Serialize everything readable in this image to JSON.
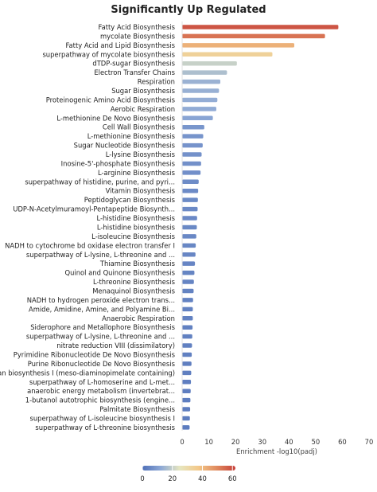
{
  "chart_data": {
    "type": "bar",
    "orientation": "horizontal",
    "title": "Significantly Up Regulated",
    "xlabel": "Enrichment -log10(padj)",
    "ylabel": "",
    "xlim": [
      0,
      70
    ],
    "xticks": [
      0,
      10,
      20,
      30,
      40,
      50,
      60,
      70
    ],
    "grid": false,
    "colormap": {
      "name": "coolwarm",
      "range": [
        0,
        62
      ],
      "ticks": [
        0,
        20,
        40,
        60
      ],
      "stops": [
        "#4e6fb8",
        "#8ea9d6",
        "#e6e6c0",
        "#f3c98a",
        "#e08a5e",
        "#c6403a"
      ]
    },
    "categories": [
      "Fatty Acid Biosynthesis",
      "mycolate Biosynthesis",
      "Fatty Acid and Lipid Biosynthesis",
      "superpathway of mycolate biosynthesis",
      "dTDP-sugar Biosynthesis",
      "Electron Transfer Chains",
      "Respiration",
      "Sugar Biosynthesis",
      "Proteinogenic Amino Acid Biosynthesis",
      "Aerobic Respiration",
      "L-methionine De Novo Biosynthesis",
      "Cell Wall Biosynthesis",
      "L-methionine Biosynthesis",
      "Sugar Nucleotide Biosynthesis",
      "L-lysine Biosynthesis",
      "Inosine-5'-phosphate Biosynthesis",
      "L-arginine Biosynthesis",
      "superpathway of histidine, purine, and pyri...",
      "Vitamin Biosynthesis",
      "Peptidoglycan Biosynthesis",
      "UDP-N-Acetylmuramoyl-Pentapeptide Biosynth...",
      "L-histidine Biosynthesis",
      "L-histidine biosynthesis",
      "L-isoleucine Biosynthesis",
      "NADH to cytochrome bd oxidase electron transfer I",
      "superpathway of L-lysine, L-threonine and ...",
      "Thiamine Biosynthesis",
      "Quinol and Quinone Biosynthesis",
      "L-threonine Biosynthesis",
      "Menaquinol Biosynthesis",
      "NADH to hydrogen peroxide electron trans...",
      "Amide, Amidine, Amine, and Polyamine Bi...",
      "Anaerobic Respiration",
      "Siderophore and Metallophore Biosynthesis",
      "superpathway of L-lysine, L-threonine and ...",
      "nitrate reduction VIII (dissimilatory)",
      "Pyrimidine Ribonucleotide De Novo Biosynthesis",
      "Purine Ribonucleotide De Novo Biosynthesis",
      "glycan biosynthesis I (meso-diaminopimelate containing)",
      "superpathway of L-homoserine and L-met...",
      "anaerobic energy metabolism (invertebrat...",
      "1-butanol autotrophic biosynthesis (engine...",
      "Palmitate Biosynthesis",
      "superpathway of L-isoleucine biosynthesis I",
      "superpathway of L-threonine biosynthesis"
    ],
    "values": [
      58.5,
      53.5,
      42,
      33.8,
      20.5,
      16.8,
      14.3,
      13.8,
      13.2,
      12.8,
      11.5,
      8.3,
      7.9,
      7.7,
      7.3,
      7.1,
      6.9,
      6.2,
      6.0,
      5.9,
      5.8,
      5.6,
      5.5,
      5.3,
      5.1,
      5.0,
      4.8,
      4.6,
      4.4,
      4.3,
      4.1,
      4.0,
      4.0,
      3.9,
      3.8,
      3.7,
      3.6,
      3.5,
      3.4,
      3.3,
      3.2,
      3.1,
      3.0,
      2.9,
      2.8
    ]
  }
}
